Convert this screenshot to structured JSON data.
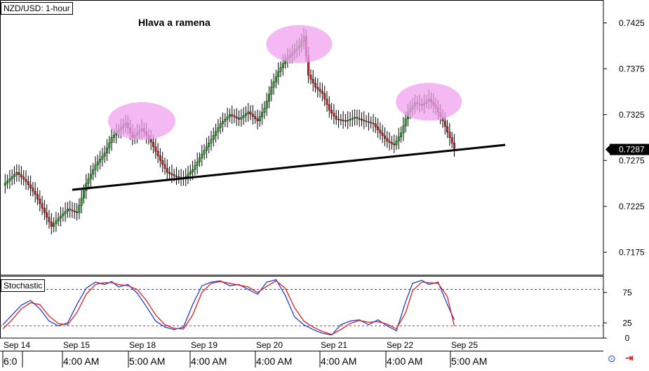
{
  "chart_data": [
    {
      "type": "candlestick",
      "title": "NZD/USD: 1-hour",
      "annotation": "Hlava a ramena",
      "ylim": [
        0.715,
        0.745
      ],
      "y_ticks": [
        "0.7425",
        "0.7375",
        "0.7325",
        "0.7275",
        "0.7225",
        "0.7175"
      ],
      "last_price": "0.7287",
      "x_ticks_top": [
        "Sep 14",
        "Sep 15",
        "Sep 18",
        "Sep 19",
        "Sep 20",
        "Sep 21",
        "Sep 22",
        "Sep 25"
      ],
      "x_ticks_bottom": [
        "6:0",
        "4:00 AM",
        "5:00 AM",
        "4:00 AM",
        "4:00 AM",
        "4:00 AM",
        "4:00 AM",
        "5:00 AM"
      ],
      "path_points": [
        [
          0,
          0.7248
        ],
        [
          6,
          0.7262
        ],
        [
          10,
          0.7252
        ],
        [
          14,
          0.7238
        ],
        [
          18,
          0.7218
        ],
        [
          21,
          0.7203
        ],
        [
          24,
          0.7212
        ],
        [
          28,
          0.7222
        ],
        [
          32,
          0.7218
        ],
        [
          36,
          0.725
        ],
        [
          40,
          0.727
        ],
        [
          44,
          0.7283
        ],
        [
          47,
          0.73
        ],
        [
          50,
          0.7308
        ],
        [
          53,
          0.7316
        ],
        [
          56,
          0.73
        ],
        [
          60,
          0.731
        ],
        [
          64,
          0.7295
        ],
        [
          68,
          0.7275
        ],
        [
          71,
          0.7262
        ],
        [
          74,
          0.7258
        ],
        [
          78,
          0.7255
        ],
        [
          82,
          0.7265
        ],
        [
          86,
          0.7282
        ],
        [
          90,
          0.7298
        ],
        [
          94,
          0.7315
        ],
        [
          98,
          0.7325
        ],
        [
          102,
          0.732
        ],
        [
          106,
          0.7328
        ],
        [
          110,
          0.7318
        ],
        [
          113,
          0.7332
        ],
        [
          116,
          0.7355
        ],
        [
          119,
          0.7372
        ],
        [
          122,
          0.7385
        ],
        [
          125,
          0.7392
        ],
        [
          128,
          0.74
        ],
        [
          130,
          0.741
        ],
        [
          132,
          0.7368
        ],
        [
          135,
          0.7355
        ],
        [
          138,
          0.7348
        ],
        [
          141,
          0.733
        ],
        [
          144,
          0.732
        ],
        [
          148,
          0.7318
        ],
        [
          152,
          0.7322
        ],
        [
          156,
          0.7318
        ],
        [
          160,
          0.7315
        ],
        [
          163,
          0.7305
        ],
        [
          166,
          0.7296
        ],
        [
          169,
          0.7292
        ],
        [
          172,
          0.7305
        ],
        [
          175,
          0.7328
        ],
        [
          178,
          0.7338
        ],
        [
          181,
          0.7335
        ],
        [
          184,
          0.7342
        ],
        [
          187,
          0.7332
        ],
        [
          190,
          0.7318
        ],
        [
          193,
          0.73
        ],
        [
          195,
          0.7288
        ]
      ],
      "highlights": [
        "left shoulder",
        "head",
        "right shoulder"
      ],
      "neckline": {
        "start": [
          30,
          0.7243
        ],
        "end": [
          217,
          0.7292
        ]
      }
    },
    {
      "type": "line",
      "title": "Stochastic",
      "ylim": [
        0,
        100
      ],
      "y_ticks": [
        "75",
        "25",
        "0"
      ],
      "levels": [
        80,
        20
      ],
      "series": [
        {
          "color": "#1f3fd6",
          "points": [
            [
              0,
              22
            ],
            [
              4,
              38
            ],
            [
              8,
              54
            ],
            [
              12,
              62
            ],
            [
              16,
              48
            ],
            [
              20,
              28
            ],
            [
              24,
              20
            ],
            [
              28,
              25
            ],
            [
              32,
              55
            ],
            [
              36,
              82
            ],
            [
              40,
              92
            ],
            [
              44,
              88
            ],
            [
              47,
              93
            ],
            [
              50,
              84
            ],
            [
              54,
              88
            ],
            [
              58,
              74
            ],
            [
              62,
              52
            ],
            [
              66,
              28
            ],
            [
              70,
              18
            ],
            [
              74,
              14
            ],
            [
              78,
              18
            ],
            [
              82,
              55
            ],
            [
              86,
              86
            ],
            [
              90,
              92
            ],
            [
              94,
              94
            ],
            [
              98,
              86
            ],
            [
              102,
              88
            ],
            [
              106,
              80
            ],
            [
              110,
              72
            ],
            [
              114,
              92
            ],
            [
              118,
              96
            ],
            [
              122,
              70
            ],
            [
              126,
              35
            ],
            [
              130,
              22
            ],
            [
              134,
              14
            ],
            [
              138,
              8
            ],
            [
              142,
              5
            ],
            [
              146,
              22
            ],
            [
              150,
              28
            ],
            [
              154,
              30
            ],
            [
              158,
              22
            ],
            [
              162,
              30
            ],
            [
              166,
              20
            ],
            [
              170,
              12
            ],
            [
              174,
              60
            ],
            [
              177,
              90
            ],
            [
              181,
              95
            ],
            [
              184,
              88
            ],
            [
              188,
              92
            ],
            [
              192,
              55
            ],
            [
              195,
              30
            ]
          ]
        },
        {
          "color": "#e02020",
          "points": [
            [
              0,
              15
            ],
            [
              4,
              30
            ],
            [
              8,
              48
            ],
            [
              12,
              58
            ],
            [
              16,
              55
            ],
            [
              20,
              36
            ],
            [
              24,
              24
            ],
            [
              28,
              22
            ],
            [
              32,
              42
            ],
            [
              36,
              72
            ],
            [
              40,
              88
            ],
            [
              44,
              91
            ],
            [
              47,
              91
            ],
            [
              50,
              88
            ],
            [
              54,
              86
            ],
            [
              58,
              80
            ],
            [
              62,
              62
            ],
            [
              66,
              38
            ],
            [
              70,
              22
            ],
            [
              74,
              16
            ],
            [
              78,
              15
            ],
            [
              82,
              38
            ],
            [
              86,
              75
            ],
            [
              90,
              90
            ],
            [
              94,
              93
            ],
            [
              98,
              90
            ],
            [
              102,
              87
            ],
            [
              106,
              84
            ],
            [
              110,
              75
            ],
            [
              114,
              85
            ],
            [
              118,
              94
            ],
            [
              122,
              82
            ],
            [
              126,
              50
            ],
            [
              130,
              28
            ],
            [
              134,
              18
            ],
            [
              138,
              11
            ],
            [
              142,
              6
            ],
            [
              146,
              14
            ],
            [
              150,
              24
            ],
            [
              154,
              29
            ],
            [
              158,
              26
            ],
            [
              162,
              27
            ],
            [
              166,
              23
            ],
            [
              170,
              15
            ],
            [
              174,
              42
            ],
            [
              177,
              78
            ],
            [
              181,
              92
            ],
            [
              184,
              91
            ],
            [
              188,
              90
            ],
            [
              192,
              68
            ],
            [
              195,
              20
            ]
          ]
        }
      ]
    }
  ]
}
